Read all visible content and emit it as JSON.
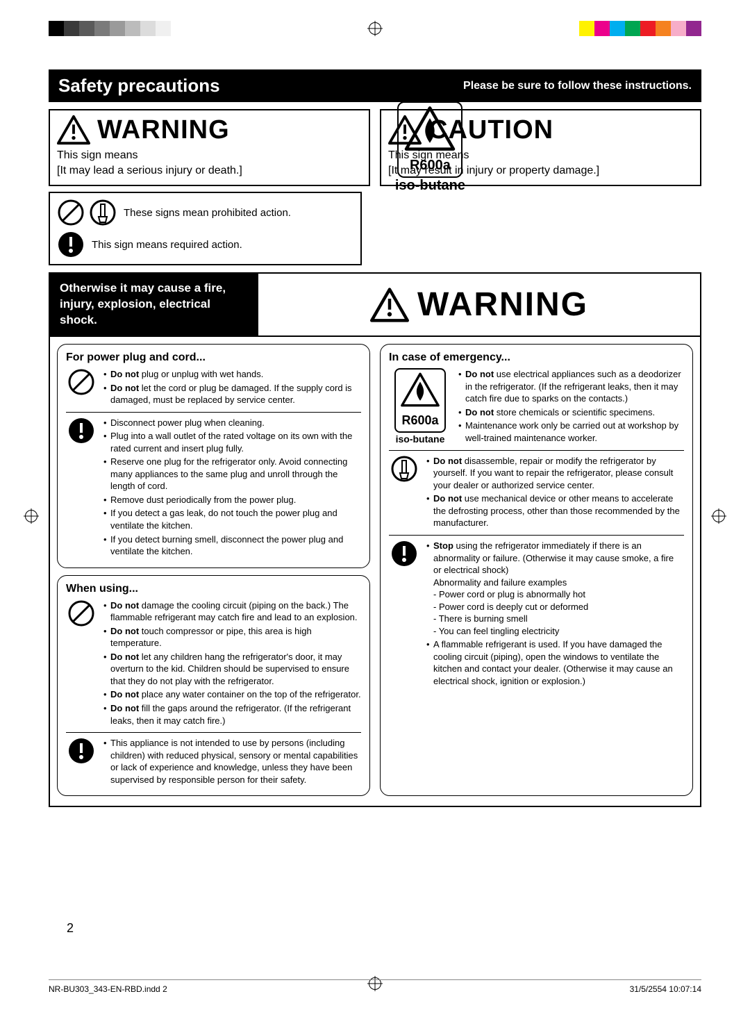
{
  "reg_colors_left": [
    "#000000",
    "#3a3a3a",
    "#5a5a5a",
    "#7a7a7a",
    "#9a9a9a",
    "#bcbcbc",
    "#dcdcdc",
    "#f0f0f0"
  ],
  "reg_colors_right": [
    "#fff200",
    "#ec008c",
    "#00aeef",
    "#00a651",
    "#ed1c24",
    "#f58220",
    "#f7adc9",
    "#92278f"
  ],
  "header": {
    "title": "Safety precautions",
    "subtitle": "Please be sure to follow these instructions."
  },
  "warn_caution": {
    "warning": {
      "label": "WARNING",
      "sub": "This sign means\n[It may lead a serious injury or death.]"
    },
    "caution": {
      "label": "CAUTION",
      "sub": "This sign means\n[It may result in injury or property damage.]"
    }
  },
  "legend": {
    "prohibited": "These signs mean prohibited action.",
    "required": "This sign means required action."
  },
  "r600": {
    "code": "R600a",
    "name": "iso-butane"
  },
  "mid": {
    "cause": "Otherwise it may cause a fire, injury, explosion, electrical shock.",
    "warning": "WARNING"
  },
  "left_col": {
    "plug": {
      "title": "For power plug and cord...",
      "prohibit": [
        "<b>Do not</b> plug or unplug with wet hands.",
        "<b>Do not</b> let the cord or plug be damaged. If the supply cord is damaged, must be replaced by service center."
      ],
      "required": [
        "Disconnect power plug when cleaning.",
        "Plug into a wall outlet of the rated voltage on its own with the rated current and insert plug fully.",
        "Reserve one plug for the refrigerator only. Avoid connecting many appliances to the same plug and unroll through the length of cord.",
        "Remove dust periodically from the power plug.",
        "If you detect a gas leak, do not touch the power plug and ventilate the kitchen.",
        "If you detect burning smell, disconnect the power plug and ventilate the kitchen."
      ]
    },
    "using": {
      "title": "When using...",
      "prohibit": [
        "<b>Do not</b> damage the cooling circuit (piping on the back.) The flammable refrigerant may catch fire and lead to an explosion.",
        "<b>Do not</b> touch compressor or pipe, this area is high temperature.",
        "<b>Do not</b> let any children hang the refrigerator's door, it may overturn to the kid. Children should be supervised to ensure that they do not play with the refrigerator.",
        "<b>Do not</b> place any water container on the top of the refrigerator.",
        "<b>Do not</b> fill the gaps around the refrigerator. (If the refrigerant leaks, then it may catch fire.)"
      ],
      "required": [
        "This appliance is not intended to use by persons (including children) with reduced physical, sensory or mental capabilities or lack of experience and knowledge, unless they have been supervised by responsible person for their safety."
      ]
    }
  },
  "right_col": {
    "emergency": {
      "title": "In case of emergency...",
      "block1": [
        "<b>Do not</b> use electrical appliances such as a deodorizer in the refrigerator. (If the refrigerant leaks, then it may catch fire due to sparks on the contacts.)",
        "<b>Do not</b> store chemicals or scientific specimens.",
        "Maintenance work only be carried out at workshop by well-trained maintenance worker."
      ],
      "block2": [
        "<b>Do not</b> disassemble, repair or modify the refrigerator by yourself. If you want to repair the refrigerator, please consult your dealer or authorized service center.",
        "<b>Do not</b> use mechanical device or other means to accelerate the defrosting process, other than those recommended by the manufacturer."
      ],
      "block3": [
        "<b>Stop</b> using the refrigerator immediately if there is an abnormality or failure. (Otherwise it may cause smoke, a fire or electrical shock)<br>Abnormality and failure examples<br>- Power cord or plug is abnormally hot<br>- Power cord is deeply cut or deformed<br>- There is burning smell<br>- You can feel tingling electricity",
        "A flammable refrigerant is used. If you have damaged the cooling circuit (piping), open the windows to ventilate the kitchen and contact your dealer. (Otherwise it may cause an electrical shock, ignition or explosion.)"
      ]
    }
  },
  "footer": {
    "left": "NR-BU303_343-EN-RBD.indd   2",
    "right": "31/5/2554   10:07:14",
    "page": "2"
  }
}
